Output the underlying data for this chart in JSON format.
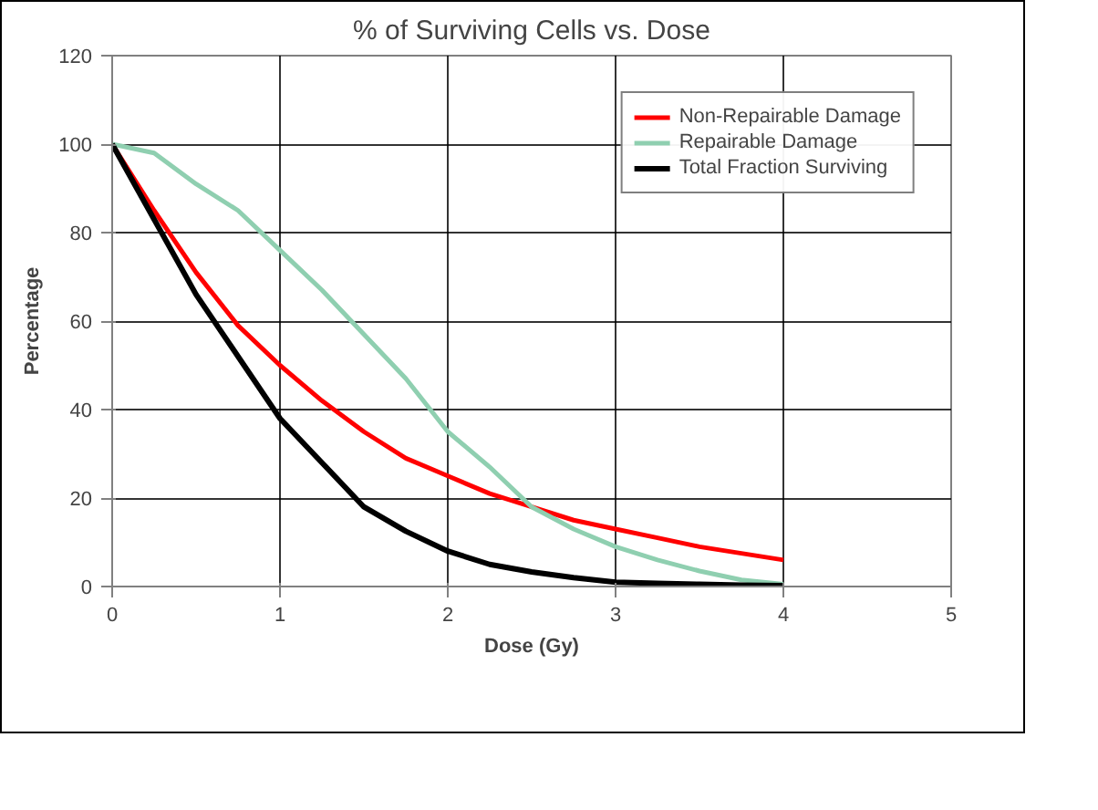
{
  "chart_data": {
    "type": "line",
    "title": "% of Surviving Cells vs. Dose",
    "xlabel": "Dose (Gy)",
    "ylabel": "Percentage",
    "xlim": [
      0,
      5
    ],
    "xticks": [
      0,
      1,
      2,
      3,
      4,
      5
    ],
    "ylim": [
      0,
      120
    ],
    "yticks": [
      0,
      20,
      40,
      60,
      80,
      100,
      120
    ],
    "grid": true,
    "legend": "top right",
    "series": [
      {
        "name": "Non-Repairable Damage",
        "color": "#ff0000",
        "x": [
          0,
          0.25,
          0.5,
          0.75,
          1,
          1.25,
          1.5,
          1.75,
          2,
          2.25,
          2.5,
          2.75,
          3,
          3.25,
          3.5,
          3.75,
          4
        ],
        "values": [
          100,
          85,
          71,
          59,
          50,
          42,
          35,
          29,
          25,
          21,
          18,
          15,
          13,
          11,
          9,
          7.5,
          6
        ]
      },
      {
        "name": "Repairable Damage",
        "color": "#8fcfb0",
        "x": [
          0,
          0.25,
          0.5,
          0.75,
          1,
          1.25,
          1.5,
          1.75,
          2,
          2.25,
          2.5,
          2.75,
          3,
          3.25,
          3.5,
          3.75,
          4
        ],
        "values": [
          100,
          98,
          91,
          85,
          76,
          67,
          57,
          47,
          35,
          27,
          18,
          13,
          9,
          6,
          3.5,
          1.5,
          0.5
        ]
      },
      {
        "name": "Total Fraction Surviving",
        "color": "#000000",
        "x": [
          0,
          0.25,
          0.5,
          0.75,
          1,
          1.25,
          1.5,
          1.75,
          2,
          2.25,
          2.5,
          2.75,
          3,
          3.25,
          3.5,
          3.75,
          4
        ],
        "values": [
          100,
          83,
          66,
          52,
          38,
          28,
          18,
          12.5,
          8,
          5,
          3.3,
          2,
          1,
          0.7,
          0.5,
          0.3,
          0.2
        ]
      }
    ]
  }
}
